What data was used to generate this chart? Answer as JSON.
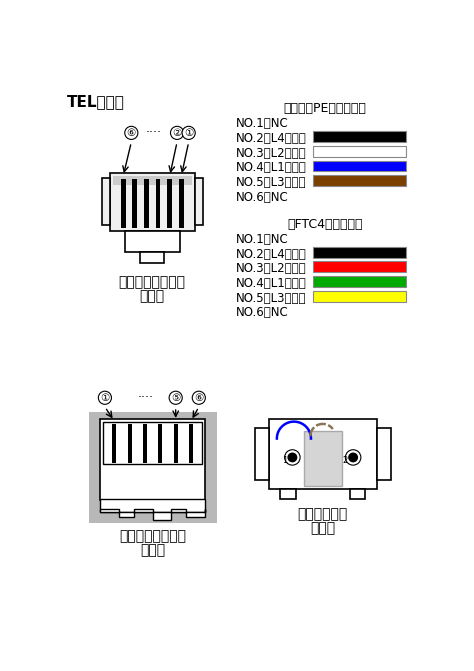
{
  "title": "TEL配線図",
  "bg_color": "#ffffff",
  "section1_title": "（カッドPEウチセン）",
  "section2_title": "（FTC4フラット）",
  "section1_labels": [
    "NO.1：NC",
    "NO.2：L4（黒）",
    "NO.3：L2（白）",
    "NO.4：L1（青）",
    "NO.5：L3（茶）",
    "NO.6：NC"
  ],
  "section1_colors": [
    null,
    "#000000",
    "#ffffff",
    "#0000ff",
    "#7b4000",
    null
  ],
  "section2_labels": [
    "NO.1：NC",
    "NO.2：L4（黒）",
    "NO.3：L2（赤）",
    "NO.4：L1（緑）",
    "NO.5：L3（黄）",
    "NO.6：NC"
  ],
  "section2_colors": [
    null,
    "#000000",
    "#ff0000",
    "#00aa00",
    "#ffff00",
    null
  ],
  "connector_label1": "ケーブルコネクタ",
  "connector_label2": "正面図",
  "jack_label1": "モジュラジャック",
  "jack_label2": "正面図",
  "modular_label1": "モジュラ配線",
  "modular_label2": "背面図"
}
